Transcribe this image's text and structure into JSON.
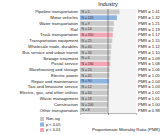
{
  "chart_data": {
    "type": "bar",
    "orientation": "horizontal",
    "title": "Industry",
    "x_label": "Proportionate Mortality Ratio (PMR)",
    "categories": [
      "Pipeline transportation",
      "Motor vehicles",
      "Water transportation",
      "Rail",
      "Truck transportation",
      "Transportation equipment",
      "Wholesale trade, durables",
      "Bus service and urban transit",
      "Sewage treatment",
      "Postal service",
      "Warehousing and storage",
      "Electric power",
      "Repair and maintenance",
      "Taxi and limousine service",
      "Electric, gas, and other utilities",
      "Waste management",
      "Construction",
      "Other transportation"
    ],
    "values": [
      1.41,
      1.32,
      1.21,
      1.19,
      1.17,
      1.15,
      1.12,
      1.1,
      1.09,
      1.08,
      1.06,
      1.05,
      1.04,
      1.03,
      1.02,
      1.01,
      1.0,
      0.98
    ],
    "value_labels": [
      "PMR = 1.41",
      "PMR = 1.32",
      "PMR = 1.21",
      "PMR = 1.19",
      "PMR = 1.17",
      "PMR = 1.15",
      "PMR = 1.12",
      "PMR = 1.10",
      "PMR = 1.09",
      "PMR = 1.08",
      "PMR = 1.06",
      "PMR = 1.05",
      "PMR = 1.04",
      "PMR = 1.03",
      "PMR = 1.02",
      "PMR = 1.01",
      "PMR = 1.00",
      "PMR = 0.98"
    ],
    "counts": [
      5,
      120,
      9,
      14,
      350,
      25,
      40,
      30,
      6,
      180,
      20,
      45,
      90,
      12,
      60,
      18,
      200,
      8
    ],
    "count_labels": [
      "N = 5",
      "N = 120",
      "N = 9",
      "N = 14",
      "N = 350",
      "N = 25",
      "N = 40",
      "N = 30",
      "N = 6",
      "N = 180",
      "N = 20",
      "N = 45",
      "N = 90",
      "N = 12",
      "N = 60",
      "N = 18",
      "N = 200",
      "N = 8"
    ],
    "colors": [
      "#c8c8c8",
      "#8fb4e0",
      "#c8c8c8",
      "#c8c8c8",
      "#f4a6b4",
      "#c8c8c8",
      "#c8c8c8",
      "#c8c8c8",
      "#c8c8c8",
      "#f4a6b4",
      "#c8c8c8",
      "#c8c8c8",
      "#8fb4e0",
      "#c8c8c8",
      "#c8c8c8",
      "#c8c8c8",
      "#c8c8c8",
      "#c8c8c8"
    ],
    "legend": "bottom-left",
    "legend_labels": [
      "Non-sig",
      "p < 0.05",
      "p < 0.01"
    ],
    "legend_colors": [
      "#c8c8c8",
      "#8fb4e0",
      "#f4a6b4"
    ],
    "xlim": [
      0,
      2
    ],
    "xticks": [
      1
    ],
    "grid": true,
    "tick_labels": false,
    "data_labels": true
  }
}
